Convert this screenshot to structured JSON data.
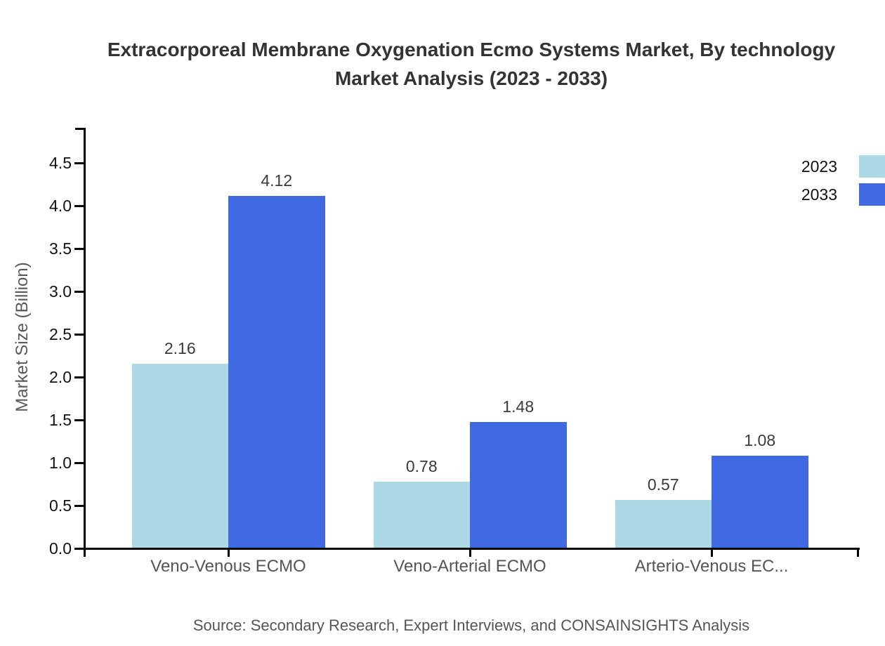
{
  "title": {
    "line1": "Extracorporeal Membrane Oxygenation Ecmo Systems Market, By technology",
    "line2": "Market Analysis (2023 - 2033)"
  },
  "legend": [
    {
      "label": "2023",
      "color": "#ADD8E6"
    },
    {
      "label": "2033",
      "color": "#4169E1"
    }
  ],
  "source": "Source: Secondary Research, Expert Interviews, and CONSAINSIGHTS Analysis",
  "colors": {
    "series_2023": "#ADD8E6",
    "series_2033": "#4169E1",
    "axis": "#000000",
    "title_text": "#333333",
    "tick_text": "#111111",
    "category_text": "#555555",
    "value_text": "#3a3a3a"
  },
  "chart_data": {
    "type": "bar",
    "title": "Extracorporeal Membrane Oxygenation Ecmo Systems Market, By technology Market Analysis (2023 - 2033)",
    "categories": [
      "Veno-Venous ECMO",
      "Veno-Arterial ECMO",
      "Arterio-Venous EC..."
    ],
    "series": [
      {
        "name": "2023",
        "color": "#ADD8E6",
        "values": [
          2.16,
          0.78,
          0.57
        ]
      },
      {
        "name": "2033",
        "color": "#4169E1",
        "values": [
          4.12,
          1.48,
          1.08
        ]
      }
    ],
    "xlabel": "",
    "ylabel": "Market Size (Billion)",
    "ylim": [
      0,
      4.92
    ],
    "ytick_step": 0.5,
    "yticks": [
      "0.0",
      "0.5",
      "1.0",
      "1.5",
      "2.0",
      "2.5",
      "3.0",
      "3.5",
      "4.0",
      "4.5"
    ],
    "grid": false,
    "value_labels": true,
    "legend_position": "top-right"
  }
}
